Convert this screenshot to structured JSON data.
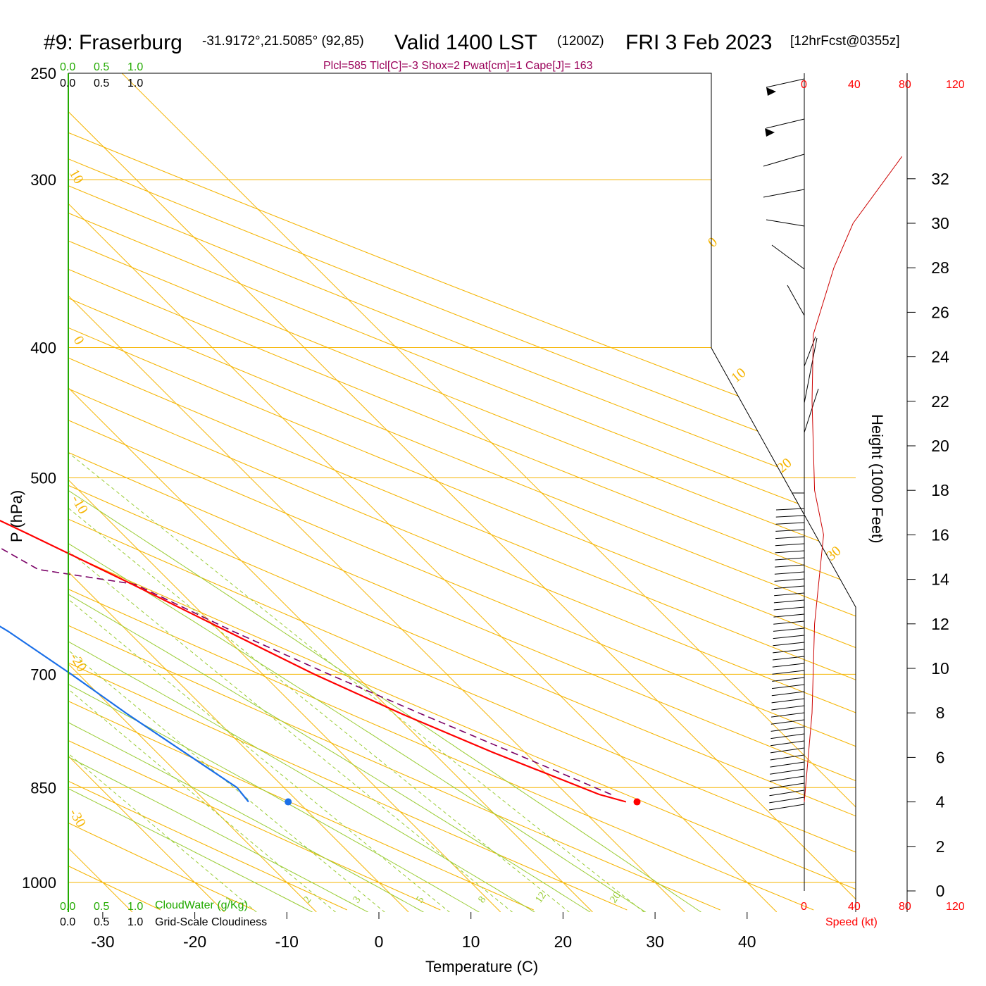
{
  "header": {
    "station": "#9: Fraserburg",
    "coords": "-31.9172°,21.5085° (92,85)",
    "valid": "Valid 1400 LST",
    "utc": "(1200Z)",
    "date": "FRI 3 Feb 2023",
    "forecast": "[12hrFcst@0355z]",
    "stats": "Plcl=585 Tlcl[C]=-3 Shox=2 Pwat[cm]=1 Cape[J]= 163"
  },
  "scales": {
    "cloudwater_ticks": [
      "0.0",
      "0.5",
      "1.0"
    ],
    "cloudiness_ticks": [
      "0.0",
      "0.5",
      "1.0"
    ],
    "cloudwater_label": "CloudWater (g/Kg)",
    "cloudiness_label": "Grid-Scale Cloudiness",
    "speed_ticks": [
      "0",
      "40",
      "80",
      "120"
    ],
    "speed_label": "Speed (kt)"
  },
  "colors": {
    "isotherm": "#f5b400",
    "dry_adiabat": "#99cc33",
    "mixing_ratio": "#99cc33",
    "temperature": "#ff0000",
    "dewpoint": "#1a6fe8",
    "parcel": "#7a0066",
    "cloud_axis": "#22aa00"
  },
  "chart_data": {
    "type": "skew-t",
    "xlabel": "Temperature (C)",
    "ylabel": "P (hPa)",
    "y2label": "Height (1000 Feet)",
    "temp_ticks": [
      -30,
      -20,
      -10,
      0,
      10,
      20,
      30,
      40
    ],
    "pressure_ticks": [
      250,
      300,
      400,
      500,
      700,
      850,
      1000
    ],
    "height_ticks_kft": [
      0,
      2,
      4,
      6,
      8,
      10,
      12,
      14,
      16,
      18,
      20,
      22,
      24,
      26,
      28,
      30,
      32
    ],
    "isotherm_labels": [
      "10",
      "0",
      "-10",
      "-20",
      "-30",
      "0",
      "10",
      "20",
      "30"
    ],
    "mixing_ratio_labels": [
      "1",
      "2",
      "3",
      "5",
      "8",
      "12",
      "20"
    ],
    "temperature_profile": [
      {
        "p": 871,
        "t": 35.6
      },
      {
        "p": 860,
        "t": 33.5
      },
      {
        "p": 800,
        "t": 26.5
      },
      {
        "p": 750,
        "t": 20.9
      },
      {
        "p": 700,
        "t": 15.6
      },
      {
        "p": 650,
        "t": 10.8
      },
      {
        "p": 600,
        "t": 5.6
      },
      {
        "p": 550,
        "t": -0.3
      },
      {
        "p": 510,
        "t": -5.6
      },
      {
        "p": 500,
        "t": -6.6
      },
      {
        "p": 450,
        "t": -12.2
      },
      {
        "p": 400,
        "t": -19.5
      },
      {
        "p": 350,
        "t": -29.2
      },
      {
        "p": 300,
        "t": -39.6
      },
      {
        "p": 250,
        "t": -51.0
      }
    ],
    "dewpoint_profile": [
      {
        "p": 871,
        "t": -5.4
      },
      {
        "p": 850,
        "t": -5.1
      },
      {
        "p": 800,
        "t": -7.0
      },
      {
        "p": 750,
        "t": -9.0
      },
      {
        "p": 700,
        "t": -10.8
      },
      {
        "p": 650,
        "t": -13.0
      },
      {
        "p": 600,
        "t": -16.5
      },
      {
        "p": 575,
        "t": -19.0
      },
      {
        "p": 550,
        "t": -28.0
      },
      {
        "p": 525,
        "t": -34.0
      },
      {
        "p": 500,
        "t": -42.0
      },
      {
        "p": 450,
        "t": -58.0
      },
      {
        "p": 400,
        "t": -55.0
      },
      {
        "p": 350,
        "t": -59.0
      },
      {
        "p": 300,
        "t": -65.0
      },
      {
        "p": 250,
        "t": -73.0
      }
    ],
    "parcel_profile": [
      {
        "p": 860,
        "t": 34.8
      },
      {
        "p": 800,
        "t": 28.6
      },
      {
        "p": 750,
        "t": 23.0
      },
      {
        "p": 700,
        "t": 17.2
      },
      {
        "p": 650,
        "t": 11.4
      },
      {
        "p": 600,
        "t": 5.9
      },
      {
        "p": 585,
        "t": -3.0
      },
      {
        "p": 550,
        "t": -6.0
      },
      {
        "p": 515,
        "t": -9.5
      }
    ],
    "surface_temperature": {
      "p": 871,
      "t": 36.8
    },
    "surface_dewpoint": {
      "p": 871,
      "t": -1.1
    },
    "wind_speed_profile": [
      {
        "kft": 4,
        "kt": 0
      },
      {
        "kft": 8,
        "kt": 6
      },
      {
        "kft": 12,
        "kt": 8
      },
      {
        "kft": 16,
        "kt": 15
      },
      {
        "kft": 18,
        "kt": 8
      },
      {
        "kft": 22,
        "kt": 6
      },
      {
        "kft": 25,
        "kt": 7
      },
      {
        "kft": 28,
        "kt": 23
      },
      {
        "kft": 30,
        "kt": 38
      },
      {
        "kft": 33,
        "kt": 76
      }
    ]
  }
}
